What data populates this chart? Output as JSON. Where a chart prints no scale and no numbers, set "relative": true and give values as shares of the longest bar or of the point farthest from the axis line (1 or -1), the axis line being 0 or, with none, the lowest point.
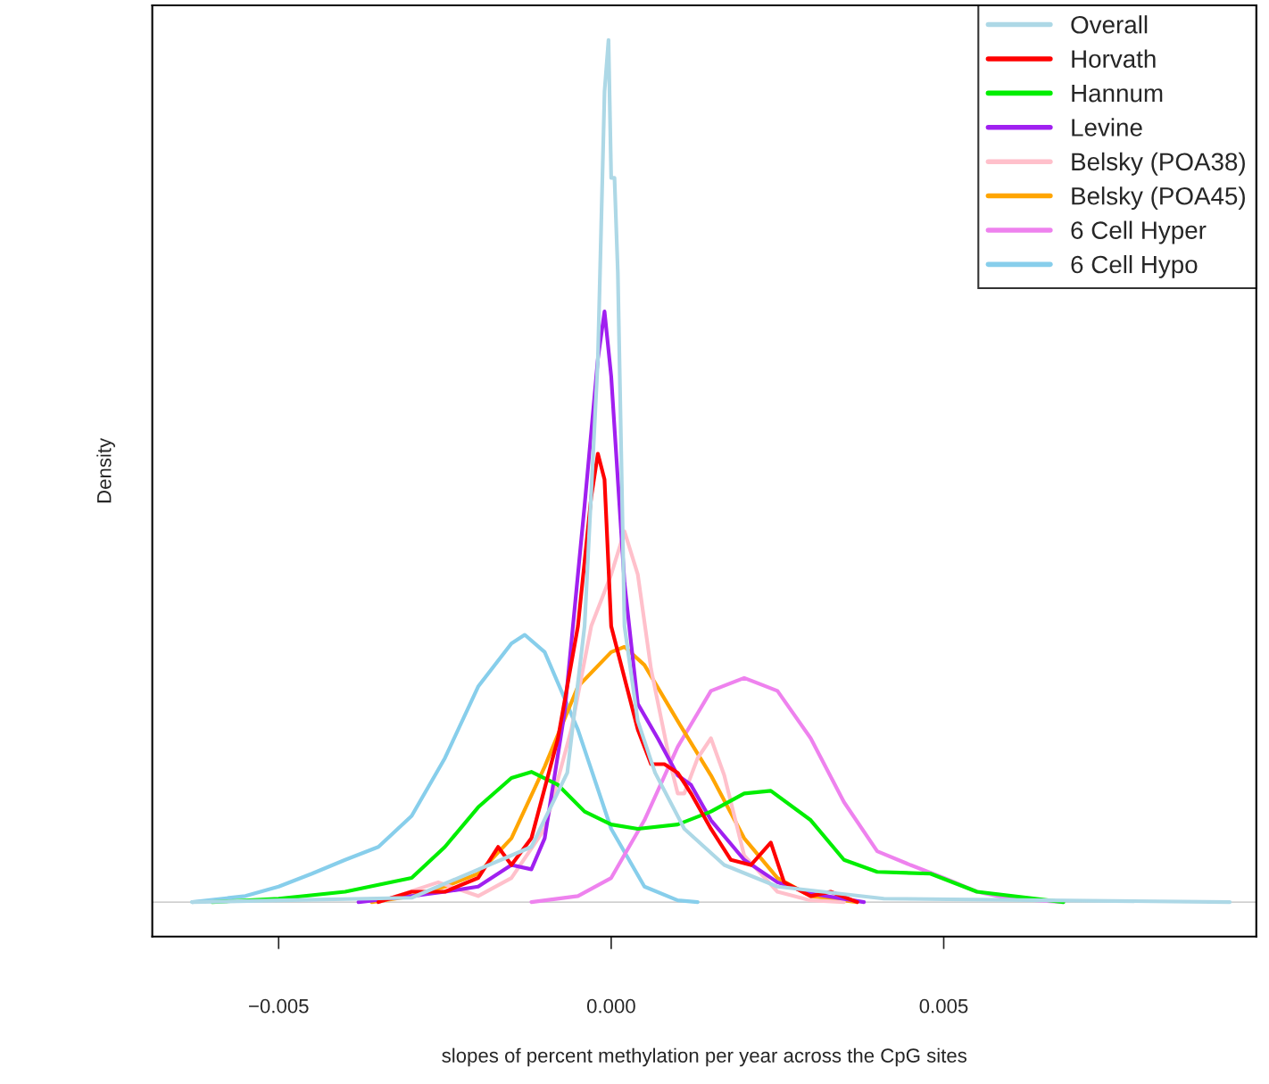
{
  "chart_data": {
    "type": "line",
    "relative": true,
    "xlabel": "slopes of percent methylation per year across the CpG sites",
    "ylabel": "Density",
    "xlim": [
      -0.0069,
      0.0097
    ],
    "xticks": [
      {
        "value": -0.005,
        "label": "−0.005"
      },
      {
        "value": 0.0,
        "label": "0.000"
      },
      {
        "value": 0.005,
        "label": "0.005"
      }
    ],
    "legend": "top right",
    "grid": false,
    "ref_lines": [
      {
        "axis": "y",
        "value": 0,
        "color": "#bebebe"
      }
    ],
    "series": [
      {
        "name": "Overall",
        "color": "#add8e6",
        "x": [
          -0.0063,
          -0.003,
          -0.0012,
          -0.00066,
          -0.0004,
          -0.0002,
          -0.0001,
          -4e-05,
          0.0,
          5e-05,
          0.0001,
          0.0002,
          0.0004,
          0.00066,
          0.0011,
          0.0017,
          0.0025,
          0.0041,
          0.0093
        ],
        "values": [
          0,
          0.005,
          0.064,
          0.15,
          0.32,
          0.63,
          0.94,
          1.0,
          0.84,
          0.84,
          0.73,
          0.32,
          0.21,
          0.15,
          0.085,
          0.043,
          0.018,
          0.004,
          0
        ]
      },
      {
        "name": "Horvath",
        "color": "#ff0000",
        "x": [
          -0.0035,
          -0.003,
          -0.0025,
          -0.002,
          -0.0017,
          -0.0015,
          -0.0012,
          -0.0008,
          -0.0005,
          -0.0003,
          -0.0002,
          -0.0001,
          0.0,
          0.0002,
          0.0004,
          0.0006,
          0.0008,
          0.001,
          0.0012,
          0.0015,
          0.0018,
          0.0021,
          0.0024,
          0.0026,
          0.003,
          0.0033,
          0.0037
        ],
        "values": [
          0,
          0.012,
          0.012,
          0.028,
          0.064,
          0.043,
          0.074,
          0.19,
          0.32,
          0.47,
          0.52,
          0.49,
          0.32,
          0.26,
          0.2,
          0.16,
          0.16,
          0.15,
          0.126,
          0.085,
          0.049,
          0.043,
          0.069,
          0.023,
          0.007,
          0.012,
          0
        ]
      },
      {
        "name": "Hannum",
        "color": "#00ee00",
        "x": [
          -0.006,
          -0.005,
          -0.004,
          -0.003,
          -0.0025,
          -0.002,
          -0.0015,
          -0.0012,
          -0.0008,
          -0.0004,
          0.0,
          0.0004,
          0.001,
          0.0015,
          0.002,
          0.0024,
          0.003,
          0.0035,
          0.004,
          0.0048,
          0.0055,
          0.0068
        ],
        "values": [
          0,
          0.004,
          0.012,
          0.028,
          0.064,
          0.11,
          0.144,
          0.151,
          0.136,
          0.105,
          0.09,
          0.085,
          0.09,
          0.105,
          0.126,
          0.129,
          0.095,
          0.049,
          0.035,
          0.033,
          0.012,
          0
        ]
      },
      {
        "name": "Levine",
        "color": "#a020f0",
        "x": [
          -0.0038,
          -0.003,
          -0.0025,
          -0.002,
          -0.0015,
          -0.0012,
          -0.001,
          -0.0007,
          -0.0004,
          -0.0002,
          -0.0001,
          0.0,
          0.0002,
          0.0004,
          0.0007,
          0.001,
          0.0012,
          0.0015,
          0.002,
          0.0025,
          0.003,
          0.0038
        ],
        "values": [
          0,
          0.007,
          0.012,
          0.018,
          0.043,
          0.038,
          0.074,
          0.22,
          0.46,
          0.63,
          0.685,
          0.61,
          0.37,
          0.23,
          0.19,
          0.147,
          0.136,
          0.095,
          0.049,
          0.023,
          0.01,
          0
        ]
      },
      {
        "name": "Belsky (POA38)",
        "color": "#ffc0cb",
        "x": [
          -0.0035,
          -0.0026,
          -0.002,
          -0.0015,
          -0.001,
          -0.0006,
          -0.0003,
          0.0,
          0.0002,
          0.0004,
          0.0006,
          0.0009,
          0.001,
          0.0011,
          0.0013,
          0.0015,
          0.0017,
          0.002,
          0.0025,
          0.003,
          0.0035
        ],
        "values": [
          0,
          0.023,
          0.007,
          0.028,
          0.085,
          0.2,
          0.32,
          0.38,
          0.43,
          0.38,
          0.27,
          0.157,
          0.126,
          0.126,
          0.167,
          0.19,
          0.147,
          0.054,
          0.012,
          0.002,
          0
        ]
      },
      {
        "name": "Belsky (POA45)",
        "color": "#ffa500",
        "x": [
          -0.0036,
          -0.003,
          -0.0025,
          -0.002,
          -0.0015,
          -0.001,
          -0.0005,
          0.0,
          0.0002,
          0.0005,
          0.001,
          0.0015,
          0.002,
          0.0025,
          0.003,
          0.0037
        ],
        "values": [
          0,
          0.007,
          0.018,
          0.033,
          0.074,
          0.157,
          0.25,
          0.29,
          0.296,
          0.275,
          0.21,
          0.147,
          0.074,
          0.028,
          0.007,
          0
        ]
      },
      {
        "name": "6 Cell Hyper",
        "color": "#ee82ee",
        "x": [
          -0.0012,
          -0.0005,
          0.0,
          0.0005,
          0.001,
          0.0015,
          0.002,
          0.0025,
          0.003,
          0.0035,
          0.004,
          0.0045,
          0.005,
          0.0055,
          0.006,
          0.0068
        ],
        "values": [
          0,
          0.007,
          0.028,
          0.095,
          0.18,
          0.245,
          0.26,
          0.245,
          0.19,
          0.116,
          0.059,
          0.043,
          0.028,
          0.012,
          0.004,
          0
        ]
      },
      {
        "name": "6 Cell Hypo",
        "color": "#87ceeb",
        "x": [
          -0.0063,
          -0.0055,
          -0.005,
          -0.0045,
          -0.004,
          -0.0035,
          -0.003,
          -0.0025,
          -0.002,
          -0.0015,
          -0.0013,
          -0.001,
          -0.0005,
          0.0,
          0.0005,
          0.001,
          0.0013
        ],
        "values": [
          0,
          0.007,
          0.018,
          0.033,
          0.049,
          0.064,
          0.1,
          0.167,
          0.25,
          0.3,
          0.31,
          0.29,
          0.2,
          0.085,
          0.018,
          0.002,
          0
        ]
      }
    ]
  }
}
